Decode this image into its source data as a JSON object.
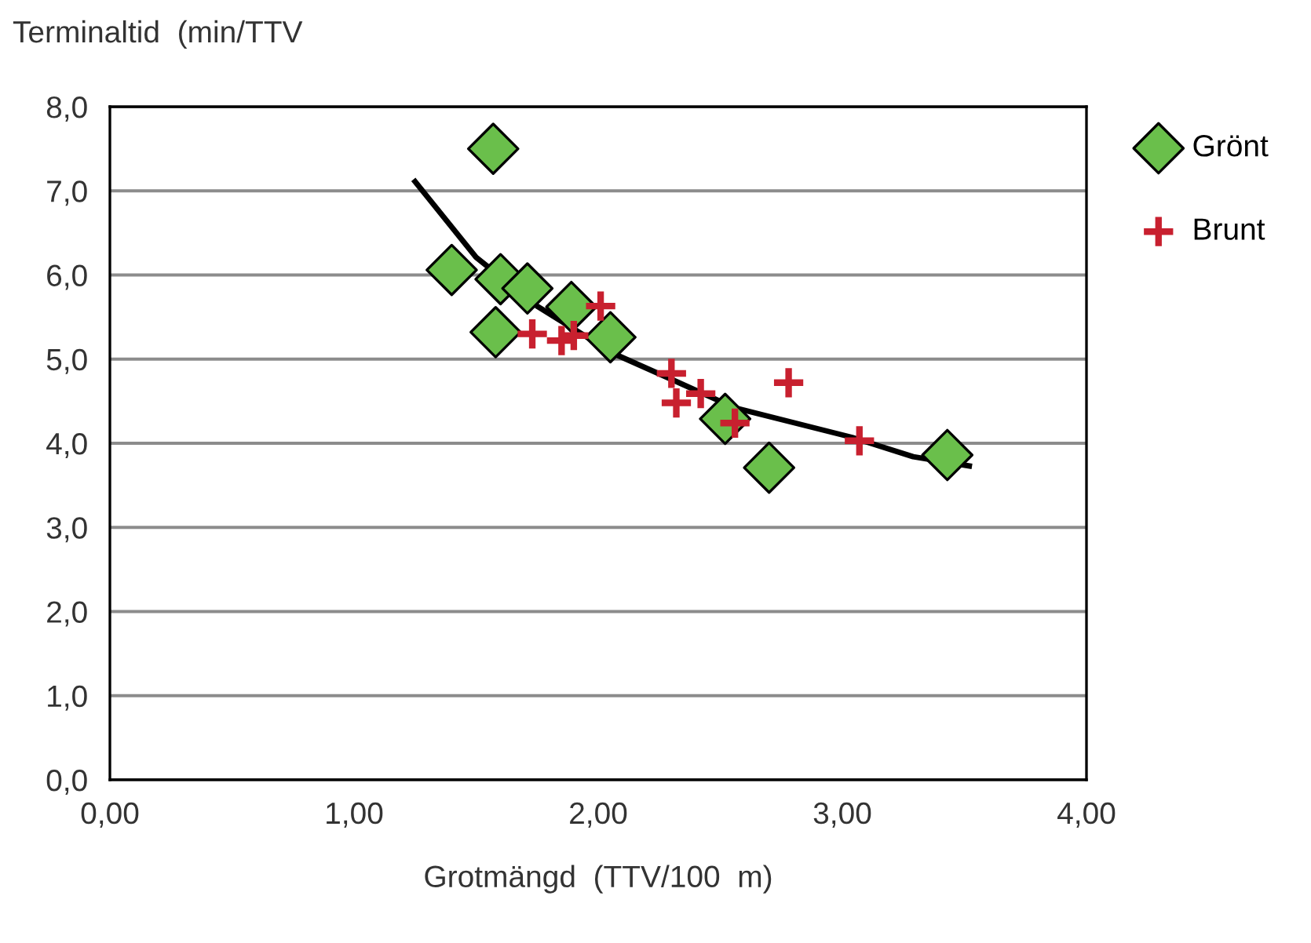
{
  "chart_data": {
    "type": "scatter",
    "xlabel": "Grotmängd  (TTV/100  m)",
    "ylabel": "Terminaltid  (min/TTV",
    "xlim": [
      0,
      4
    ],
    "ylim": [
      0,
      8
    ],
    "xticks": [
      {
        "value": 0,
        "label": "0,00"
      },
      {
        "value": 1,
        "label": "1,00"
      },
      {
        "value": 2,
        "label": "2,00"
      },
      {
        "value": 3,
        "label": "3,00"
      },
      {
        "value": 4,
        "label": "4,00"
      }
    ],
    "yticks": [
      {
        "value": 0,
        "label": "0,0"
      },
      {
        "value": 1,
        "label": "1,0"
      },
      {
        "value": 2,
        "label": "2,0"
      },
      {
        "value": 3,
        "label": "3,0"
      },
      {
        "value": 4,
        "label": "4,0"
      },
      {
        "value": 5,
        "label": "5,0"
      },
      {
        "value": 6,
        "label": "6,0"
      },
      {
        "value": 7,
        "label": "7,0"
      },
      {
        "value": 8,
        "label": "8,0"
      }
    ],
    "grid": "y",
    "legend": "top right",
    "series": [
      {
        "name": "Grönt",
        "color": "#6abf4b",
        "marker": "diamond",
        "x": [
          1.57,
          1.4,
          1.6,
          1.71,
          1.89,
          1.58,
          2.05,
          2.52,
          2.7,
          3.43
        ],
        "values": [
          7.5,
          6.06,
          5.95,
          5.84,
          5.62,
          5.32,
          5.26,
          4.29,
          3.71,
          3.86
        ]
      },
      {
        "name": "Brunt",
        "color": "#c8202f",
        "marker": "cross",
        "x": [
          1.73,
          1.85,
          1.9,
          2.01,
          2.3,
          2.32,
          2.42,
          2.56,
          2.78,
          3.07
        ],
        "values": [
          5.3,
          5.22,
          5.28,
          5.63,
          4.83,
          4.48,
          4.59,
          4.24,
          4.72,
          4.03
        ]
      },
      {
        "type": "line",
        "color": "#000000",
        "marker": "none",
        "x": [
          1.25,
          1.5,
          1.75,
          2.06,
          2.3,
          2.56,
          3.04,
          3.29,
          3.52
        ],
        "values": [
          7.11,
          6.21,
          5.63,
          5.07,
          4.76,
          4.42,
          4.07,
          3.84,
          3.73
        ]
      }
    ]
  }
}
